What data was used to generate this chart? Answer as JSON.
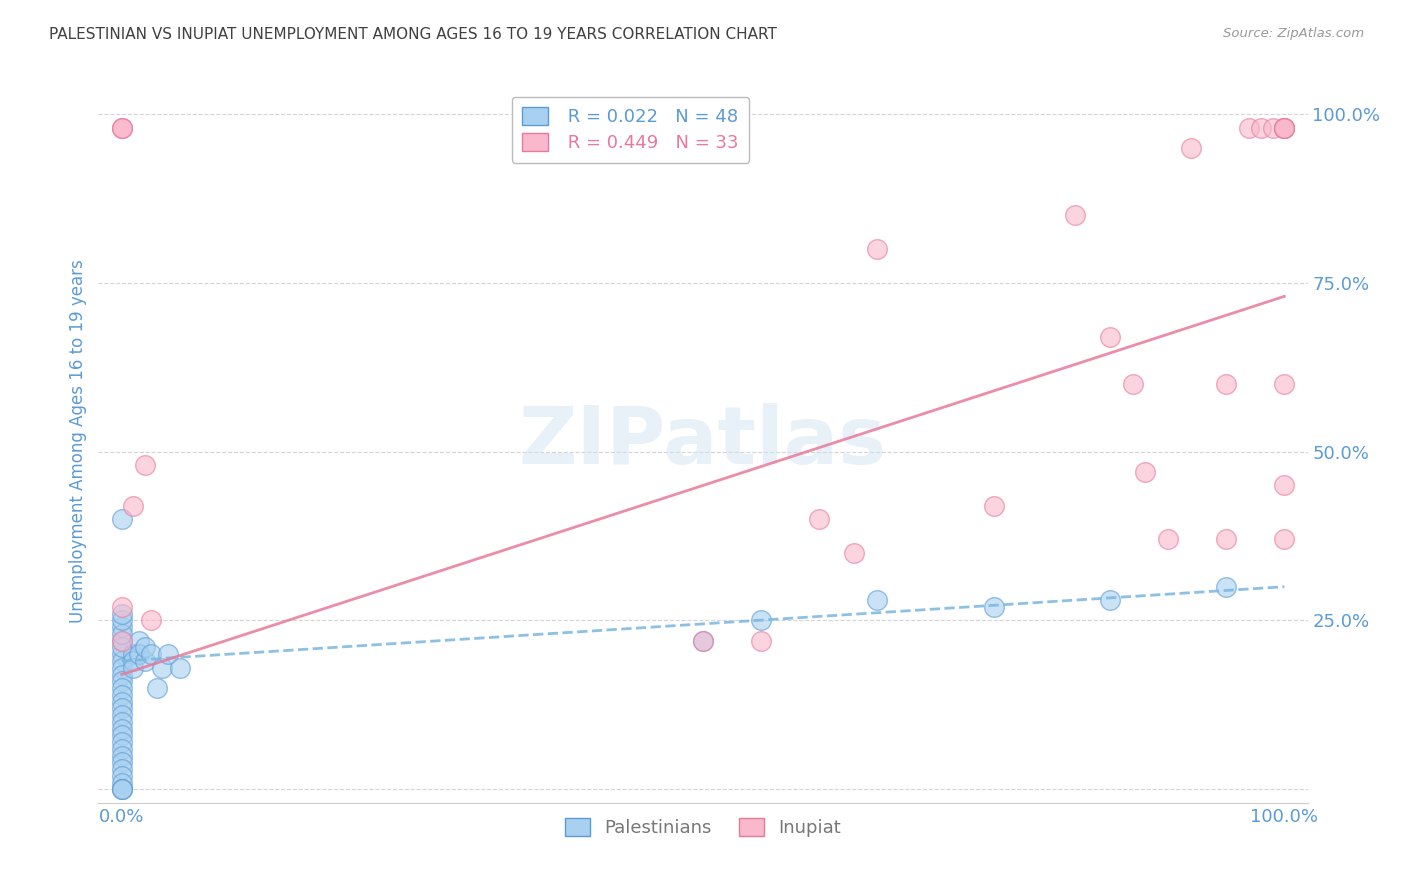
{
  "title": "PALESTINIAN VS INUPIAT UNEMPLOYMENT AMONG AGES 16 TO 19 YEARS CORRELATION CHART",
  "source": "Source: ZipAtlas.com",
  "ylabel": "Unemployment Among Ages 16 to 19 years",
  "xlim": [
    -0.02,
    1.02
  ],
  "ylim": [
    -0.02,
    1.05
  ],
  "xticks": [
    0.0,
    0.25,
    0.5,
    0.75,
    1.0
  ],
  "yticks": [
    0.0,
    0.25,
    0.5,
    0.75,
    1.0
  ],
  "xticklabels": [
    "0.0%",
    "",
    "",
    "",
    "100.0%"
  ],
  "yticklabels": [
    "",
    "25.0%",
    "50.0%",
    "75.0%",
    "100.0%"
  ],
  "background_color": "#ffffff",
  "watermark": "ZIPatlas",
  "legend_r_blue": "R = 0.022",
  "legend_n_blue": "N = 48",
  "legend_r_pink": "R = 0.449",
  "legend_n_pink": "N = 33",
  "legend_label_blue": "Palestinians",
  "legend_label_pink": "Inupiat",
  "blue_fill": "#a8d0f0",
  "pink_fill": "#f9b8cc",
  "blue_edge": "#5b9bd5",
  "pink_edge": "#e8799a",
  "blue_line": "#7ab5e0",
  "pink_line": "#e8799a",
  "title_color": "#404040",
  "axis_label_color": "#5b9bd5",
  "tick_color": "#5b9bd5",
  "grid_color": "#d0d0d0",
  "palestinians_x": [
    0.0,
    0.0,
    0.0,
    0.0,
    0.0,
    0.0,
    0.0,
    0.0,
    0.0,
    0.0,
    0.0,
    0.0,
    0.0,
    0.0,
    0.0,
    0.0,
    0.0,
    0.0,
    0.0,
    0.0,
    0.0,
    0.0,
    0.0,
    0.0,
    0.0,
    0.0,
    0.0,
    0.0,
    0.0,
    0.0,
    0.01,
    0.01,
    0.01,
    0.015,
    0.015,
    0.02,
    0.02,
    0.025,
    0.03,
    0.035,
    0.04,
    0.05,
    0.5,
    0.55,
    0.65,
    0.75,
    0.85,
    0.95
  ],
  "palestinians_y": [
    0.2,
    0.19,
    0.18,
    0.17,
    0.16,
    0.15,
    0.14,
    0.13,
    0.12,
    0.11,
    0.1,
    0.09,
    0.08,
    0.07,
    0.06,
    0.05,
    0.04,
    0.03,
    0.02,
    0.01,
    0.0,
    0.0,
    0.0,
    0.22,
    0.21,
    0.24,
    0.23,
    0.25,
    0.26,
    0.4,
    0.2,
    0.19,
    0.18,
    0.22,
    0.2,
    0.19,
    0.21,
    0.2,
    0.15,
    0.18,
    0.2,
    0.18,
    0.22,
    0.25,
    0.28,
    0.27,
    0.28,
    0.3
  ],
  "inupiat_x": [
    0.0,
    0.0,
    0.0,
    0.0,
    0.0,
    0.01,
    0.02,
    0.025,
    0.5,
    0.55,
    0.6,
    0.63,
    0.65,
    0.75,
    0.82,
    0.85,
    0.87,
    0.88,
    0.9,
    0.92,
    0.95,
    0.95,
    0.97,
    0.98,
    0.99,
    1.0,
    1.0,
    1.0,
    1.0,
    1.0,
    1.0,
    1.0,
    1.0
  ],
  "inupiat_y": [
    0.98,
    0.98,
    0.98,
    0.22,
    0.27,
    0.42,
    0.48,
    0.25,
    0.22,
    0.22,
    0.4,
    0.35,
    0.8,
    0.42,
    0.85,
    0.67,
    0.6,
    0.47,
    0.37,
    0.95,
    0.37,
    0.6,
    0.98,
    0.98,
    0.98,
    0.98,
    0.98,
    0.98,
    0.98,
    0.98,
    0.6,
    0.45,
    0.37
  ],
  "blue_trendline_x": [
    0.0,
    1.0
  ],
  "blue_trendline_y": [
    0.19,
    0.3
  ],
  "pink_trendline_x": [
    0.0,
    1.0
  ],
  "pink_trendline_y": [
    0.17,
    0.73
  ]
}
